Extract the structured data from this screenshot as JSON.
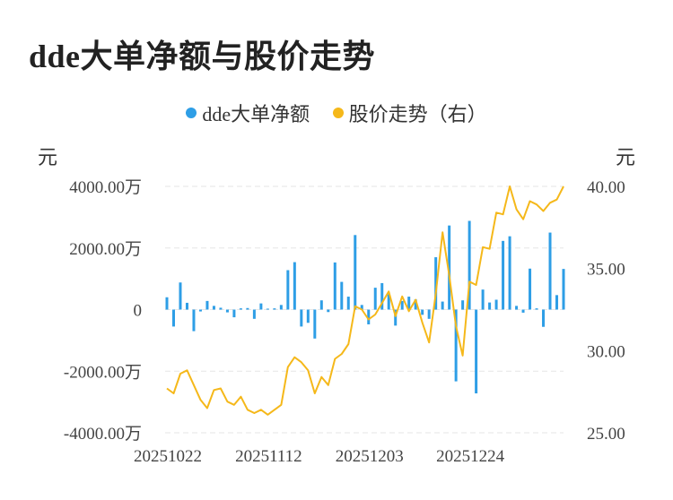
{
  "title": "dde大单净额与股价走势",
  "colors": {
    "bar": "#2e9ee6",
    "line": "#f5b81a",
    "grid": "#e6e6e6"
  },
  "chart_data": {
    "type": "bar+line",
    "legend": [
      {
        "name": "dde大单净额",
        "color": "#2e9ee6"
      },
      {
        "name": "股价走势（右）",
        "color": "#f5b81a"
      }
    ],
    "left_unit": "元",
    "right_unit": "元",
    "left_ticks": [
      "4000.00万",
      "2000.00万",
      "0",
      "-2000.00万",
      "-4000.00万"
    ],
    "left_tick_values": [
      4000,
      2000,
      0,
      -2000,
      -4000
    ],
    "right_ticks": [
      "40.00",
      "35.00",
      "30.00",
      "25.00"
    ],
    "right_tick_values": [
      40,
      35,
      30,
      25
    ],
    "ylim_left": [
      -4000,
      4000
    ],
    "ylim_right": [
      25,
      40
    ],
    "x_ticks": [
      "20251022",
      "20251112",
      "20251203",
      "20251224"
    ],
    "x_tick_indices": [
      0,
      15,
      30,
      45
    ],
    "grid": true,
    "legend_position": "top-center",
    "series": [
      {
        "name": "dde大单净额",
        "type": "bar",
        "values": [
          400,
          -550,
          880,
          220,
          -700,
          -60,
          280,
          120,
          60,
          -90,
          -250,
          40,
          50,
          -300,
          200,
          30,
          40,
          150,
          1280,
          1540,
          -550,
          -430,
          -940,
          300,
          -80,
          1530,
          900,
          420,
          2420,
          150,
          -480,
          710,
          860,
          500,
          -520,
          280,
          420,
          330,
          -170,
          -300,
          1700,
          260,
          2730,
          -2330,
          300,
          2880,
          -2720,
          650,
          230,
          320,
          2230,
          2380,
          120,
          -100,
          1330,
          40,
          -560,
          2500,
          470,
          1320
        ]
      },
      {
        "name": "股价走势（右）",
        "type": "line",
        "values": [
          27.7,
          27.4,
          28.6,
          28.8,
          27.9,
          27.0,
          26.5,
          27.6,
          27.7,
          26.9,
          26.7,
          27.2,
          26.4,
          26.2,
          26.4,
          26.1,
          26.4,
          26.7,
          29.0,
          29.6,
          29.3,
          28.8,
          27.4,
          28.4,
          27.9,
          29.5,
          29.8,
          30.4,
          32.7,
          32.5,
          31.9,
          32.2,
          32.9,
          33.6,
          32.1,
          33.3,
          32.4,
          33.1,
          31.7,
          30.5,
          33.5,
          37.2,
          34.6,
          31.5,
          29.7,
          34.2,
          34.0,
          36.3,
          36.2,
          38.4,
          38.3,
          40.0,
          38.6,
          38.0,
          39.1,
          38.9,
          38.5,
          39.0,
          39.2,
          40.0
        ]
      }
    ]
  }
}
